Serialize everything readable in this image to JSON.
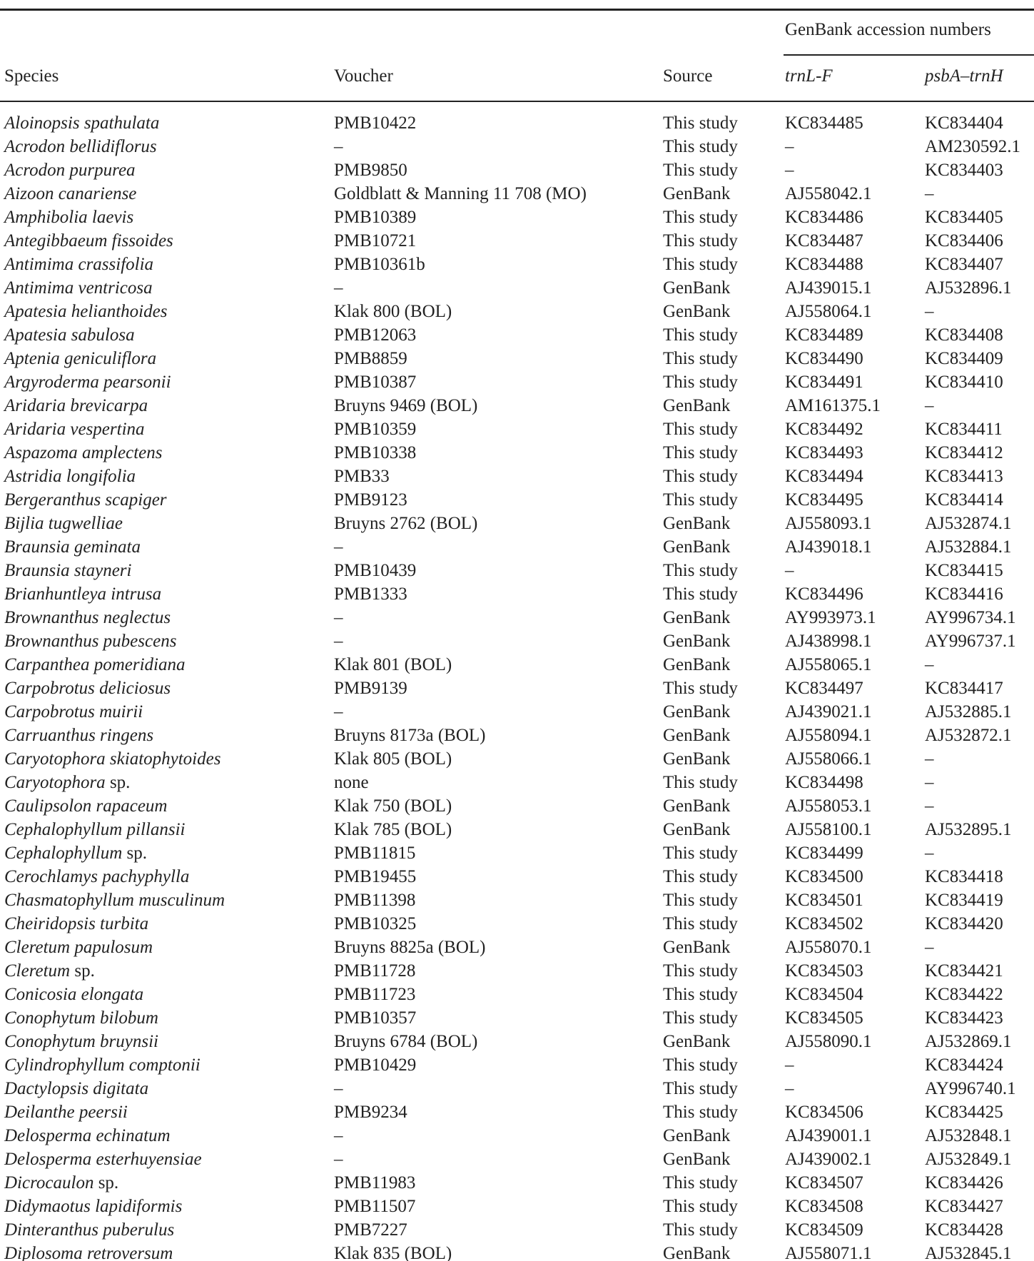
{
  "table": {
    "group_header": "GenBank accession numbers",
    "headers": [
      "Species",
      "Voucher",
      "Source",
      "trnL-F",
      "psbA–trnH"
    ],
    "rows": [
      [
        "Aloinopsis spathulata",
        "PMB10422",
        "This study",
        "KC834485",
        "KC834404"
      ],
      [
        "Acrodon bellidiflorus",
        "–",
        "This study",
        "–",
        "AM230592.1"
      ],
      [
        "Acrodon purpurea",
        "PMB9850",
        "This study",
        "–",
        "KC834403"
      ],
      [
        "Aizoon canariense",
        "Goldblatt & Manning 11 708 (MO)",
        "GenBank",
        "AJ558042.1",
        "–"
      ],
      [
        "Amphibolia laevis",
        "PMB10389",
        "This study",
        "KC834486",
        "KC834405"
      ],
      [
        "Antegibbaeum fissoides",
        "PMB10721",
        "This study",
        "KC834487",
        "KC834406"
      ],
      [
        "Antimima crassifolia",
        "PMB10361b",
        "This study",
        "KC834488",
        "KC834407"
      ],
      [
        "Antimima ventricosa",
        "–",
        "GenBank",
        "AJ439015.1",
        "AJ532896.1"
      ],
      [
        "Apatesia helianthoides",
        "Klak 800 (BOL)",
        "GenBank",
        "AJ558064.1",
        "–"
      ],
      [
        "Apatesia sabulosa",
        "PMB12063",
        "This study",
        "KC834489",
        "KC834408"
      ],
      [
        "Aptenia geniculiflora",
        "PMB8859",
        "This study",
        "KC834490",
        "KC834409"
      ],
      [
        "Argyroderma pearsonii",
        "PMB10387",
        "This study",
        "KC834491",
        "KC834410"
      ],
      [
        "Aridaria brevicarpa",
        "Bruyns 9469 (BOL)",
        "GenBank",
        "AM161375.1",
        "–"
      ],
      [
        "Aridaria vespertina",
        "PMB10359",
        "This study",
        "KC834492",
        "KC834411"
      ],
      [
        "Aspazoma amplectens",
        "PMB10338",
        "This study",
        "KC834493",
        "KC834412"
      ],
      [
        "Astridia longifolia",
        "PMB33",
        "This study",
        "KC834494",
        "KC834413"
      ],
      [
        "Bergeranthus scapiger",
        "PMB9123",
        "This study",
        "KC834495",
        "KC834414"
      ],
      [
        "Bijlia tugwelliae",
        "Bruyns 2762 (BOL)",
        "GenBank",
        "AJ558093.1",
        "AJ532874.1"
      ],
      [
        "Braunsia geminata",
        "–",
        "GenBank",
        "AJ439018.1",
        "AJ532884.1"
      ],
      [
        "Braunsia stayneri",
        "PMB10439",
        "This study",
        "–",
        "KC834415"
      ],
      [
        "Brianhuntleya intrusa",
        "PMB1333",
        "This study",
        "KC834496",
        "KC834416"
      ],
      [
        "Brownanthus neglectus",
        "–",
        "GenBank",
        "AY993973.1",
        "AY996734.1"
      ],
      [
        "Brownanthus pubescens",
        "–",
        "GenBank",
        "AJ438998.1",
        "AY996737.1"
      ],
      [
        "Carpanthea pomeridiana",
        "Klak 801 (BOL)",
        "GenBank",
        "AJ558065.1",
        "–"
      ],
      [
        "Carpobrotus deliciosus",
        "PMB9139",
        "This study",
        "KC834497",
        "KC834417"
      ],
      [
        "Carpobrotus muirii",
        "–",
        "GenBank",
        "AJ439021.1",
        "AJ532885.1"
      ],
      [
        "Carruanthus ringens",
        "Bruyns 8173a (BOL)",
        "GenBank",
        "AJ558094.1",
        "AJ532872.1"
      ],
      [
        "Caryotophora skiatophytoides",
        "Klak 805 (BOL)",
        "GenBank",
        "AJ558066.1",
        "–"
      ],
      [
        "Caryotophora sp.",
        "none",
        "This study",
        "KC834498",
        "–"
      ],
      [
        "Caulipsolon rapaceum",
        "Klak 750 (BOL)",
        "GenBank",
        "AJ558053.1",
        "–"
      ],
      [
        "Cephalophyllum pillansii",
        "Klak 785 (BOL)",
        "GenBank",
        "AJ558100.1",
        "AJ532895.1"
      ],
      [
        "Cephalophyllum sp.",
        "PMB11815",
        "This study",
        "KC834499",
        "–"
      ],
      [
        "Cerochlamys pachyphylla",
        "PMB19455",
        "This study",
        "KC834500",
        "KC834418"
      ],
      [
        "Chasmatophyllum musculinum",
        "PMB11398",
        "This study",
        "KC834501",
        "KC834419"
      ],
      [
        "Cheiridopsis turbita",
        "PMB10325",
        "This study",
        "KC834502",
        "KC834420"
      ],
      [
        "Cleretum papulosum",
        "Bruyns 8825a (BOL)",
        "GenBank",
        "AJ558070.1",
        "–"
      ],
      [
        "Cleretum sp.",
        "PMB11728",
        "This study",
        "KC834503",
        "KC834421"
      ],
      [
        "Conicosia elongata",
        "PMB11723",
        "This study",
        "KC834504",
        "KC834422"
      ],
      [
        "Conophytum bilobum",
        "PMB10357",
        "This study",
        "KC834505",
        "KC834423"
      ],
      [
        "Conophytum bruynsii",
        "Bruyns 6784 (BOL)",
        "GenBank",
        "AJ558090.1",
        "AJ532869.1"
      ],
      [
        "Cylindrophyllum comptonii",
        "PMB10429",
        "This study",
        "–",
        "KC834424"
      ],
      [
        "Dactylopsis digitata",
        "–",
        "This study",
        "–",
        "AY996740.1"
      ],
      [
        "Deilanthe peersii",
        "PMB9234",
        "This study",
        "KC834506",
        "KC834425"
      ],
      [
        "Delosperma echinatum",
        "–",
        "GenBank",
        "AJ439001.1",
        "AJ532848.1"
      ],
      [
        "Delosperma esterhuyensiae",
        "–",
        "GenBank",
        "AJ439002.1",
        "AJ532849.1"
      ],
      [
        "Dicrocaulon sp.",
        "PMB11983",
        "This study",
        "KC834507",
        "KC834426"
      ],
      [
        "Didymaotus lapidiformis",
        "PMB11507",
        "This study",
        "KC834508",
        "KC834427"
      ],
      [
        "Dinteranthus puberulus",
        "PMB7227",
        "This study",
        "KC834509",
        "KC834428"
      ],
      [
        "Diplosoma retroversum",
        "Klak 835 (BOL)",
        "GenBank",
        "AJ558071.1",
        "AJ532845.1"
      ]
    ]
  }
}
